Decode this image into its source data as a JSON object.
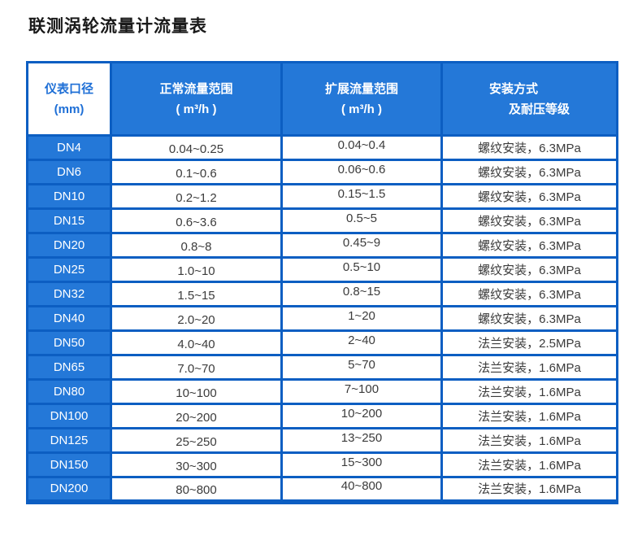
{
  "title": "联测涡轮流量计流量表",
  "colors": {
    "cell_blue": "#2478d8",
    "border_blue": "#0c5ec2",
    "header_text": "#ffffff",
    "first_header_text": "#1e6fd6",
    "body_text": "#3b3b3b"
  },
  "table": {
    "headers": [
      {
        "line1": "仪表口径",
        "line2": "(mm)"
      },
      {
        "line1": "正常流量范围",
        "line2": "( m³/h )"
      },
      {
        "line1": "扩展流量范围",
        "line2": "( m³/h )"
      },
      {
        "line1": "安装方式",
        "line2": "及耐压等级"
      }
    ],
    "rows": [
      {
        "dn": "DN4",
        "normal": "0.04~0.25",
        "extended": "0.04~0.4",
        "install": "螺纹安装，6.3MPa"
      },
      {
        "dn": "DN6",
        "normal": "0.1~0.6",
        "extended": "0.06~0.6",
        "install": "螺纹安装，6.3MPa"
      },
      {
        "dn": "DN10",
        "normal": "0.2~1.2",
        "extended": "0.15~1.5",
        "install": "螺纹安装，6.3MPa"
      },
      {
        "dn": "DN15",
        "normal": "0.6~3.6",
        "extended": "0.5~5",
        "install": "螺纹安装，6.3MPa"
      },
      {
        "dn": "DN20",
        "normal": "0.8~8",
        "extended": "0.45~9",
        "install": "螺纹安装，6.3MPa"
      },
      {
        "dn": "DN25",
        "normal": "1.0~10",
        "extended": "0.5~10",
        "install": "螺纹安装，6.3MPa"
      },
      {
        "dn": "DN32",
        "normal": "1.5~15",
        "extended": "0.8~15",
        "install": "螺纹安装，6.3MPa"
      },
      {
        "dn": "DN40",
        "normal": "2.0~20",
        "extended": "1~20",
        "install": "螺纹安装，6.3MPa"
      },
      {
        "dn": "DN50",
        "normal": "4.0~40",
        "extended": "2~40",
        "install": "法兰安装，2.5MPa"
      },
      {
        "dn": "DN65",
        "normal": "7.0~70",
        "extended": "5~70",
        "install": "法兰安装，1.6MPa"
      },
      {
        "dn": "DN80",
        "normal": "10~100",
        "extended": "7~100",
        "install": "法兰安装，1.6MPa"
      },
      {
        "dn": "DN100",
        "normal": "20~200",
        "extended": "10~200",
        "install": "法兰安装，1.6MPa"
      },
      {
        "dn": "DN125",
        "normal": "25~250",
        "extended": "13~250",
        "install": "法兰安装，1.6MPa"
      },
      {
        "dn": "DN150",
        "normal": "30~300",
        "extended": "15~300",
        "install": "法兰安装，1.6MPa"
      },
      {
        "dn": "DN200",
        "normal": "80~800",
        "extended": "40~800",
        "install": "法兰安装，1.6MPa"
      }
    ]
  }
}
